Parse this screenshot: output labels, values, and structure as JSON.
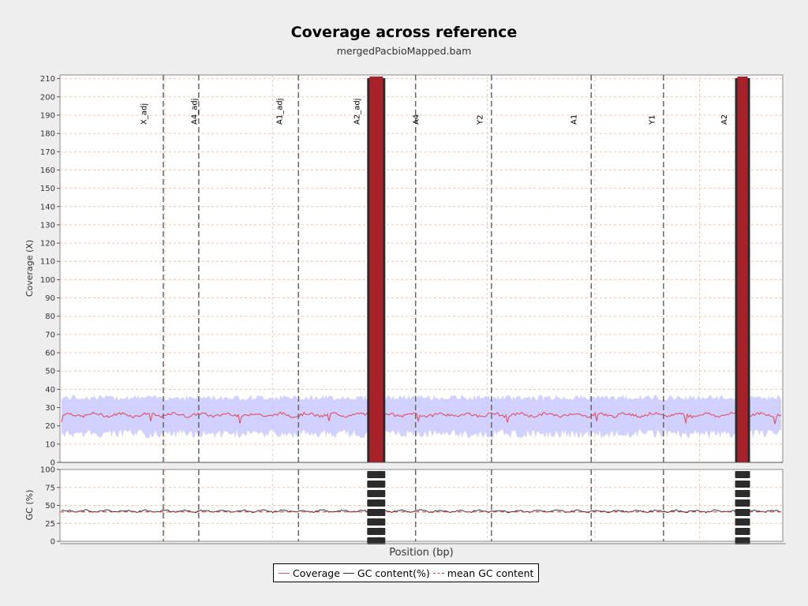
{
  "chart_data": {
    "type": "line",
    "title": "Coverage across reference",
    "subtitle": "mergedPacbioMapped.bam",
    "xlabel": "Position (bp)",
    "panels": [
      {
        "ylabel": "Coverage (X)",
        "ylim": [
          0,
          212
        ],
        "yticks": [
          "0",
          "10",
          "20",
          "30",
          "40",
          "50",
          "60",
          "70",
          "80",
          "90",
          "100",
          "110",
          "120",
          "130",
          "140",
          "150",
          "160",
          "170",
          "180",
          "190",
          "200",
          "210"
        ]
      },
      {
        "ylabel": "GC (%)",
        "ylim": [
          0,
          100
        ],
        "yticks": [
          "0",
          "25",
          "50",
          "75",
          "100"
        ]
      }
    ],
    "contigs": [
      "X_adj",
      "A4_adj",
      "A1_adj",
      "A2_adj",
      "A4",
      "Y2",
      "A1",
      "Y1",
      "A2"
    ],
    "series": [
      {
        "name": "Coverage",
        "mean": 26,
        "band": [
          18,
          34
        ],
        "color": "#e0586e"
      },
      {
        "name": "GC content(%)",
        "mean": 42,
        "color": "#333333"
      },
      {
        "name": "mean GC content",
        "value": 41,
        "color": "#e03030"
      }
    ],
    "grid": true,
    "legend": "bottom-center"
  },
  "legend": {
    "coverage": "Coverage",
    "gc": "GC content(%)",
    "mean_gc": "mean GC content"
  }
}
